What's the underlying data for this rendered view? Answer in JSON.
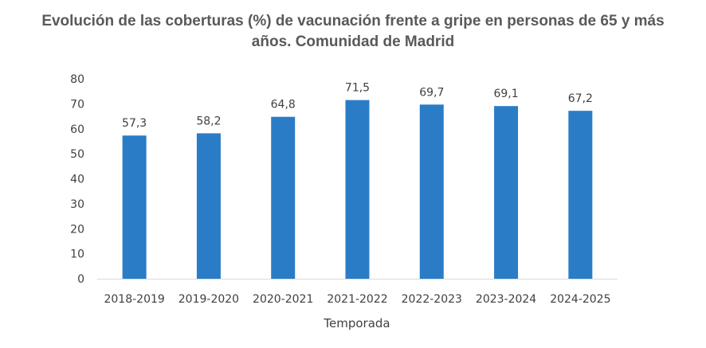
{
  "chart_data": {
    "type": "bar",
    "title_line1": "Evolución de las coberturas (%) de vacunación frente a gripe en personas de 65 y más",
    "title_line2": "años. Comunidad de Madrid",
    "xlabel": "Temporada",
    "ylabel": "",
    "ylim": [
      0,
      80
    ],
    "yticks": [
      "0",
      "10",
      "20",
      "30",
      "40",
      "50",
      "60",
      "70",
      "80"
    ],
    "categories": [
      "2018-2019",
      "2019-2020",
      "2020-2021",
      "2021-2022",
      "2022-2023",
      "2023-2024",
      "2024-2025"
    ],
    "values": [
      57.3,
      58.2,
      64.8,
      71.5,
      69.7,
      69.1,
      67.2
    ],
    "value_labels": [
      "57,3",
      "58,2",
      "64,8",
      "71,5",
      "69,7",
      "69,1",
      "67,2"
    ],
    "bar_color": "#2A7CC7",
    "grid": false,
    "legend": "none"
  }
}
